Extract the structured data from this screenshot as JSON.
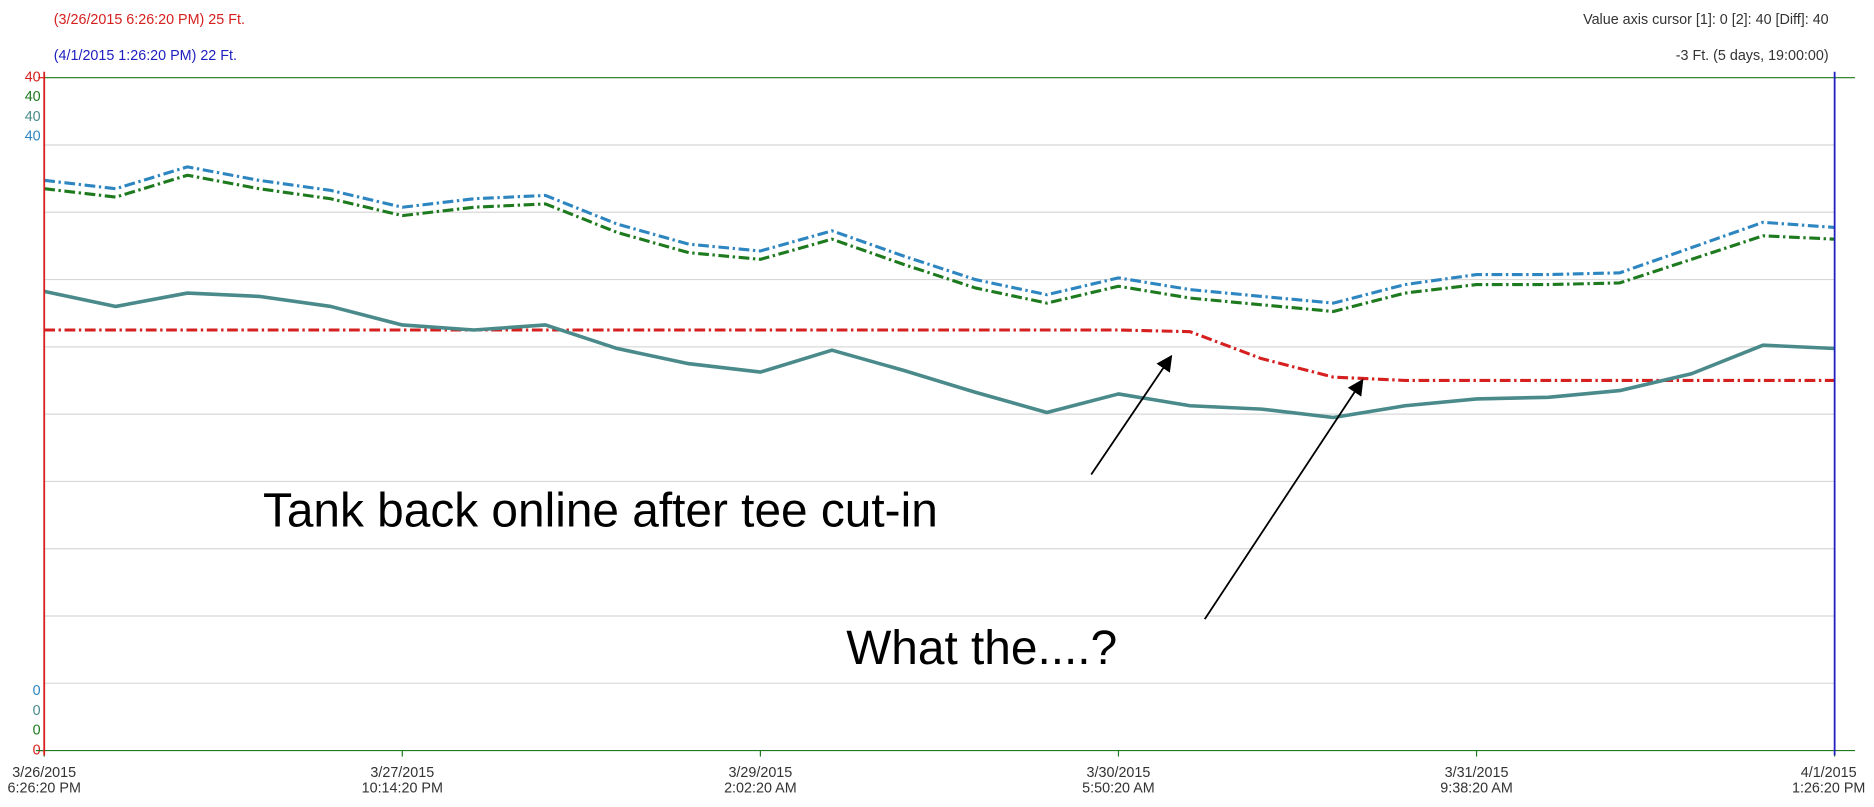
{
  "chart_data": {
    "type": "line",
    "header": {
      "cursor1": "(3/26/2015 6:26:20 PM) 25 Ft.",
      "cursor2": "(4/1/2015 1:26:20 PM) 22 Ft.",
      "value_cursor": "Value axis cursor  [1]: 0  [2]: 40  [Diff]: 40",
      "difference": "-3 Ft. (5 days, 19:00:00)"
    },
    "annotations": [
      "Tank back online after tee cut-in",
      "What the....?"
    ],
    "x": [
      "3/26/2015 6:26:20 PM",
      "3/26/2015 11:59:56 PM",
      "3/27/2015 5:33:32 AM",
      "3/27/2015 11:07:08 AM",
      "3/27/2015 4:40:44 PM",
      "3/27/2015 10:14:20 PM",
      "3/28/2015 3:47:56 AM",
      "3/28/2015 9:21:32 AM",
      "3/28/2015 2:55:08 PM",
      "3/28/2015 8:28:44 PM",
      "3/29/2015 2:02:20 AM",
      "3/29/2015 7:35:56 AM",
      "3/29/2015 1:09:32 PM",
      "3/29/2015 6:43:08 PM",
      "3/30/2015 12:16:44 AM",
      "3/30/2015 5:50:20 AM",
      "3/30/2015 11:23:56 AM",
      "3/30/2015 4:57:32 PM",
      "3/30/2015 10:31:08 PM",
      "3/31/2015 4:04:44 AM",
      "3/31/2015 9:38:20 AM",
      "3/31/2015 3:11:56 PM",
      "3/31/2015 8:45:32 PM",
      "4/1/2015 2:19:08 AM",
      "4/1/2015 7:52:44 AM",
      "4/1/2015 1:26:20 PM"
    ],
    "xlim": [
      "3/26/2015 6:26:20 PM",
      "4/1/2015 1:26:20 PM"
    ],
    "xticks": [
      "3/26/2015 6:26:20 PM",
      "3/27/2015 10:14:20 PM",
      "3/29/2015 2:02:20 AM",
      "3/30/2015 5:50:20 AM",
      "3/31/2015 9:38:20 AM",
      "4/1/2015 1:26:20 PM"
    ],
    "ylim": [
      0,
      40
    ],
    "yticks": [
      0,
      40
    ],
    "grid_lines": 10,
    "series": [
      {
        "color": "#d62020",
        "style": "dashdot",
        "values": [
          25,
          25,
          25,
          25,
          25,
          25,
          25,
          25,
          25,
          25,
          25,
          25,
          25,
          25,
          25,
          25,
          24.9,
          23.3,
          22.2,
          22,
          22,
          22,
          22,
          22,
          22,
          22
        ]
      },
      {
        "color": "#1e7a1e",
        "style": "dashdot",
        "values": [
          33.4,
          32.9,
          34.2,
          33.4,
          32.8,
          31.8,
          32.3,
          32.5,
          30.8,
          29.6,
          29.2,
          30.4,
          28.9,
          27.5,
          26.6,
          27.6,
          26.9,
          26.5,
          26.1,
          27.2,
          27.7,
          27.7,
          27.8,
          29.2,
          30.6,
          30.4
        ]
      },
      {
        "color": "#4a8a8a",
        "style": "solid",
        "values": [
          27.3,
          26.4,
          27.2,
          27.0,
          26.4,
          25.3,
          25.0,
          25.3,
          23.9,
          23.0,
          22.5,
          23.8,
          22.6,
          21.3,
          20.1,
          21.2,
          20.5,
          20.3,
          19.8,
          20.5,
          20.9,
          21.0,
          21.4,
          22.4,
          24.1,
          23.9
        ]
      },
      {
        "color": "#2e86c1",
        "style": "dashdot",
        "values": [
          33.9,
          33.4,
          34.7,
          33.9,
          33.3,
          32.3,
          32.8,
          33.0,
          31.3,
          30.1,
          29.7,
          30.9,
          29.4,
          28.0,
          27.1,
          28.1,
          27.4,
          27.0,
          26.6,
          27.7,
          28.3,
          28.3,
          28.4,
          29.9,
          31.4,
          31.1
        ]
      }
    ]
  }
}
